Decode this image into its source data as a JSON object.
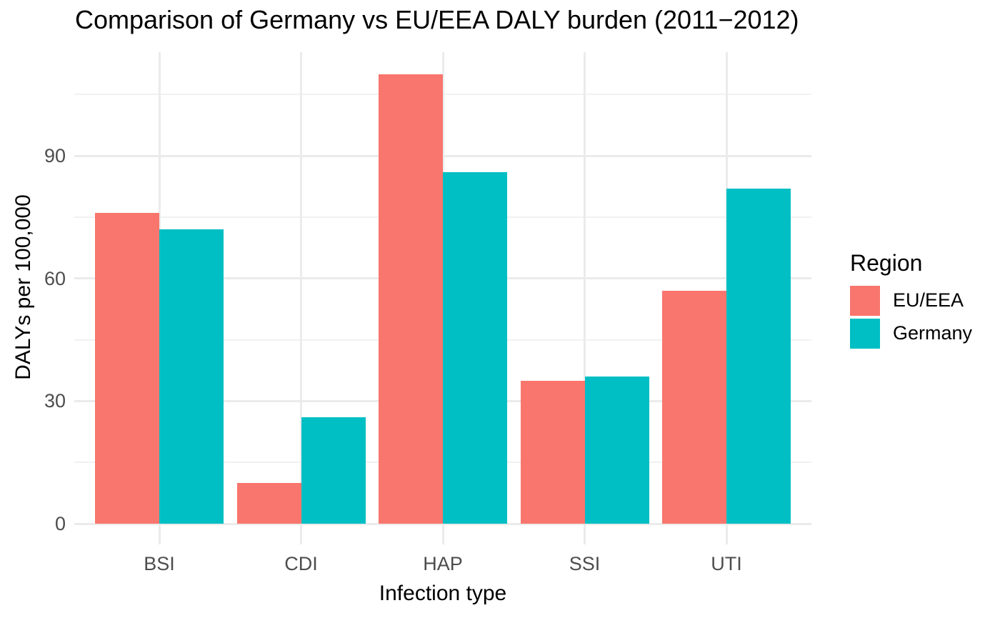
{
  "title": "Comparison of Germany vs EU/EEA DALY burden (2011−2012)",
  "axes": {
    "x_label": "Infection type",
    "y_label": "DALYs per 100,000"
  },
  "legend": {
    "title": "Region",
    "position": "right",
    "items": [
      {
        "label": "EU/EEA",
        "color": "#F8766D"
      },
      {
        "label": "Germany",
        "color": "#00BFC4"
      }
    ]
  },
  "chart_data": {
    "type": "bar",
    "grouped": true,
    "title": "Comparison of Germany vs EU/EEA DALY burden (2011−2012)",
    "xlabel": "Infection type",
    "ylabel": "DALYs per 100,000",
    "categories": [
      "BSI",
      "CDI",
      "HAP",
      "SSI",
      "UTI"
    ],
    "series": [
      {
        "name": "EU/EEA",
        "color": "#F8766D",
        "values": [
          76,
          10,
          110,
          35,
          57
        ]
      },
      {
        "name": "Germany",
        "color": "#00BFC4",
        "values": [
          72,
          26,
          86,
          36,
          82
        ]
      }
    ],
    "y_ticks": [
      0,
      30,
      60,
      90
    ],
    "y_minor_ticks": [
      15,
      45,
      75,
      105
    ],
    "ylim": [
      -5.5,
      115.4
    ],
    "grid": true,
    "legend_position": "right",
    "colors": {
      "major_grid": "#EBEBEB",
      "minor_grid": "#F1F1F1",
      "axis_text": "#4D4D4D",
      "title_text": "#000000",
      "background": "#FFFFFF"
    }
  }
}
